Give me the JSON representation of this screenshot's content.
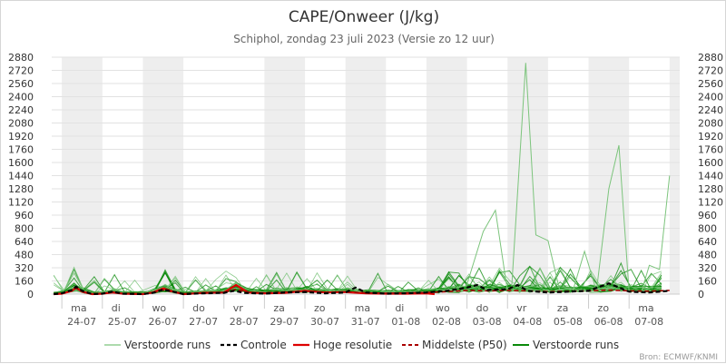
{
  "chart_data": {
    "type": "line",
    "title": "CAPE/Onweer (J/kg)",
    "subtitle": "Schiphol, zondag 23 juli 2023 (Versie zo 12 uur)",
    "credit": "Bron: ECMWF/KNMI",
    "ylim": [
      0,
      2880
    ],
    "yticks": [
      "0",
      "160",
      "320",
      "480",
      "640",
      "800",
      "960",
      "1120",
      "1280",
      "1440",
      "1600",
      "1760",
      "1920",
      "2080",
      "2240",
      "2400",
      "2560",
      "2720",
      "2880"
    ],
    "xlim": [
      -0.25,
      15.25
    ],
    "x_unit": "days from 24-07 00:00",
    "days": [
      {
        "weekday": "ma",
        "date": "24-07"
      },
      {
        "weekday": "di",
        "date": "25-07"
      },
      {
        "weekday": "wo",
        "date": "26-07"
      },
      {
        "weekday": "do",
        "date": "27-07"
      },
      {
        "weekday": "vr",
        "date": "28-07"
      },
      {
        "weekday": "za",
        "date": "29-07"
      },
      {
        "weekday": "zo",
        "date": "30-07"
      },
      {
        "weekday": "ma",
        "date": "31-07"
      },
      {
        "weekday": "di",
        "date": "01-08"
      },
      {
        "weekday": "wo",
        "date": "02-08"
      },
      {
        "weekday": "do",
        "date": "03-08"
      },
      {
        "weekday": "vr",
        "date": "04-08"
      },
      {
        "weekday": "za",
        "date": "05-08"
      },
      {
        "weekday": "zo",
        "date": "06-08"
      },
      {
        "weekday": "ma",
        "date": "07-08"
      }
    ],
    "shaded_days": [
      0,
      2,
      5,
      7,
      9,
      11,
      13,
      15
    ],
    "colors": {
      "ensemble_light": "#7cc47c",
      "ensemble_dark": "#0a8a0a",
      "control": "#000000",
      "high_res": "#dd0000",
      "median": "#aa0000",
      "shade": "#eeeeee",
      "grid": "#e2e2e2"
    },
    "legend": [
      {
        "label": "Verstoorde runs",
        "style": "light-green-line"
      },
      {
        "label": "Controle",
        "style": "black-dashed"
      },
      {
        "label": "Hoge resolutie",
        "style": "red-line"
      },
      {
        "label": "Middelste (P50)",
        "style": "darkred-dashed"
      },
      {
        "label": "Verstoorde runs",
        "style": "dark-green-line"
      }
    ],
    "series": [
      {
        "name": "Controle",
        "points": [
          [
            -0.2,
            0
          ],
          [
            0,
            10
          ],
          [
            0.25,
            50
          ],
          [
            0.35,
            90
          ],
          [
            0.5,
            40
          ],
          [
            0.75,
            0
          ],
          [
            1,
            5
          ],
          [
            1.25,
            30
          ],
          [
            1.5,
            5
          ],
          [
            2,
            0
          ],
          [
            2.25,
            15
          ],
          [
            2.5,
            55
          ],
          [
            2.75,
            30
          ],
          [
            3,
            0
          ],
          [
            3.5,
            10
          ],
          [
            4,
            15
          ],
          [
            4.25,
            40
          ],
          [
            4.5,
            15
          ],
          [
            5,
            5
          ],
          [
            5.5,
            20
          ],
          [
            6,
            25
          ],
          [
            6.5,
            10
          ],
          [
            7,
            20
          ],
          [
            7.25,
            80
          ],
          [
            7.5,
            20
          ],
          [
            8,
            5
          ],
          [
            8.5,
            10
          ],
          [
            9,
            20
          ],
          [
            9.5,
            40
          ],
          [
            10,
            80
          ],
          [
            10.25,
            110
          ],
          [
            10.5,
            50
          ],
          [
            11,
            60
          ],
          [
            11.25,
            110
          ],
          [
            11.5,
            40
          ],
          [
            12,
            20
          ],
          [
            12.5,
            30
          ],
          [
            13,
            40
          ],
          [
            13.5,
            130
          ],
          [
            14,
            30
          ],
          [
            14.5,
            20
          ],
          [
            15,
            40
          ]
        ]
      },
      {
        "name": "Hoge resolutie",
        "points": [
          [
            -0.2,
            0
          ],
          [
            0,
            5
          ],
          [
            0.25,
            40
          ],
          [
            0.35,
            80
          ],
          [
            0.5,
            30
          ],
          [
            0.75,
            0
          ],
          [
            1,
            5
          ],
          [
            1.25,
            20
          ],
          [
            1.5,
            5
          ],
          [
            2,
            0
          ],
          [
            2.25,
            20
          ],
          [
            2.5,
            70
          ],
          [
            2.75,
            30
          ],
          [
            3,
            0
          ],
          [
            3.5,
            15
          ],
          [
            4,
            20
          ],
          [
            4.3,
            110
          ],
          [
            4.6,
            20
          ],
          [
            5,
            10
          ],
          [
            5.5,
            15
          ],
          [
            6,
            40
          ],
          [
            6.5,
            20
          ],
          [
            7,
            25
          ],
          [
            7.5,
            10
          ],
          [
            8,
            5
          ],
          [
            8.5,
            5
          ],
          [
            9,
            10
          ],
          [
            9.2,
            0
          ]
        ]
      },
      {
        "name": "Middelste (P50)",
        "points": [
          [
            -0.2,
            0
          ],
          [
            0,
            8
          ],
          [
            0.25,
            45
          ],
          [
            0.35,
            70
          ],
          [
            0.5,
            30
          ],
          [
            0.75,
            0
          ],
          [
            1,
            4
          ],
          [
            1.25,
            25
          ],
          [
            1.5,
            5
          ],
          [
            2,
            0
          ],
          [
            2.25,
            15
          ],
          [
            2.5,
            50
          ],
          [
            2.75,
            25
          ],
          [
            3,
            0
          ],
          [
            3.5,
            12
          ],
          [
            4,
            18
          ],
          [
            4.3,
            60
          ],
          [
            4.6,
            20
          ],
          [
            5,
            15
          ],
          [
            5.5,
            25
          ],
          [
            6,
            35
          ],
          [
            6.5,
            20
          ],
          [
            7,
            25
          ],
          [
            7.5,
            15
          ],
          [
            8,
            10
          ],
          [
            8.5,
            15
          ],
          [
            9,
            20
          ],
          [
            9.5,
            30
          ],
          [
            10,
            45
          ],
          [
            10.5,
            40
          ],
          [
            11,
            45
          ],
          [
            11.5,
            40
          ],
          [
            12,
            30
          ],
          [
            12.5,
            35
          ],
          [
            13,
            40
          ],
          [
            13.5,
            50
          ],
          [
            14,
            40
          ],
          [
            14.5,
            35
          ],
          [
            15,
            45
          ]
        ]
      }
    ],
    "ensemble_highlights": [
      {
        "points": [
          [
            10,
            120
          ],
          [
            10.4,
            760
          ],
          [
            10.7,
            1020
          ],
          [
            11,
            30
          ]
        ]
      },
      {
        "points": [
          [
            11.1,
            60
          ],
          [
            11.45,
            2810
          ],
          [
            11.7,
            720
          ],
          [
            12,
            650
          ],
          [
            12.3,
            20
          ]
        ]
      },
      {
        "points": [
          [
            12.6,
            20
          ],
          [
            12.9,
            520
          ],
          [
            13.2,
            30
          ]
        ]
      },
      {
        "points": [
          [
            13.2,
            60
          ],
          [
            13.5,
            1280
          ],
          [
            13.75,
            1810
          ],
          [
            14,
            30
          ]
        ]
      },
      {
        "points": [
          [
            14.3,
            20
          ],
          [
            14.5,
            350
          ],
          [
            14.75,
            300
          ],
          [
            15,
            1440
          ]
        ]
      }
    ]
  }
}
